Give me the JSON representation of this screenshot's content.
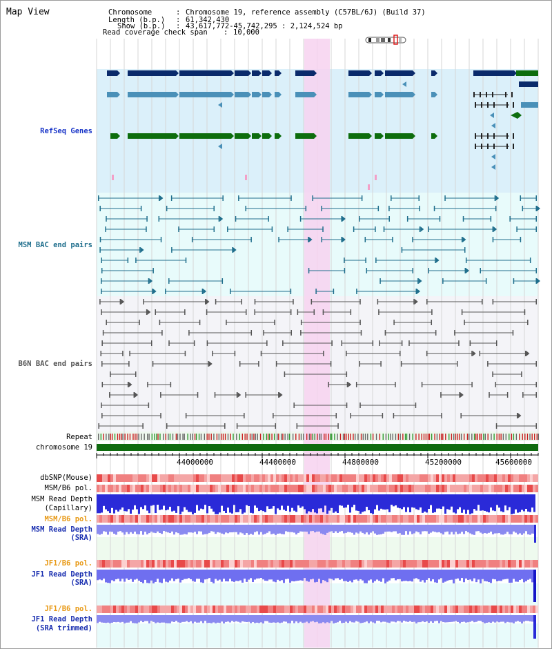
{
  "title": "Map View",
  "info": {
    "chromosome_key": "Chromosome",
    "chromosome_val": "Chromosome 19, reference assembly (C57BL/6J) (Build 37)",
    "length_key": "Length (b.p.)",
    "length_val": "61,342,430",
    "show_key": "Show (b.p.)",
    "show_val": "43,617,772-45,742,295 : 2,124,524 bp",
    "coverage_key": "Read coverage check span",
    "coverage_val": "10,000"
  },
  "tracks": {
    "refseq": "RefSeq Genes",
    "msm_bac": "MSM BAC end pairs",
    "b6n_bac": "B6N BAC end pairs",
    "repeat": "Repeat",
    "chromosome": "chromosome 19",
    "dbsnp": "dbSNP(Mouse)",
    "msm_b6_pol1": "MSM/B6 pol.",
    "msm_read_depth_cap_1": "MSM Read Depth",
    "msm_read_depth_cap_2": "(Capillary)",
    "msm_b6_pol2": "MSM/B6 pol.",
    "msm_read_depth_sra_1": "MSM Read Depth",
    "msm_read_depth_sra_2": "(SRA)",
    "jf1_b6_pol1": "JF1/B6 pol.",
    "jf1_read_depth_sra_1": "JF1 Read Depth",
    "jf1_read_depth_sra_2": "(SRA)",
    "jf1_b6_pol2": "JF1/B6 pol.",
    "jf1_read_depth_trim_1": "JF1 Read Depth",
    "jf1_read_depth_trim_2": "(SRA trimmed)"
  },
  "axis": {
    "ticks": [
      "44000000",
      "44400000",
      "44800000",
      "45200000",
      "45600000"
    ]
  },
  "colors": {
    "refseq_bg": "#dbf0fa",
    "bac_bg": "#e8fbfb",
    "b6n_bg": "#f4f4f8",
    "highlight": "#f7d2f0",
    "chromosome_bar": "#0f6b0f",
    "navy_gene": "#0a2a6b",
    "steel_gene": "#4a90b8",
    "green_gene": "#0d6d0d",
    "msm_bac": "#1f6e8c",
    "b6n_bac": "#555555",
    "depth_blue": "#2a2ad8",
    "depth_light": "#8a8af0"
  }
}
